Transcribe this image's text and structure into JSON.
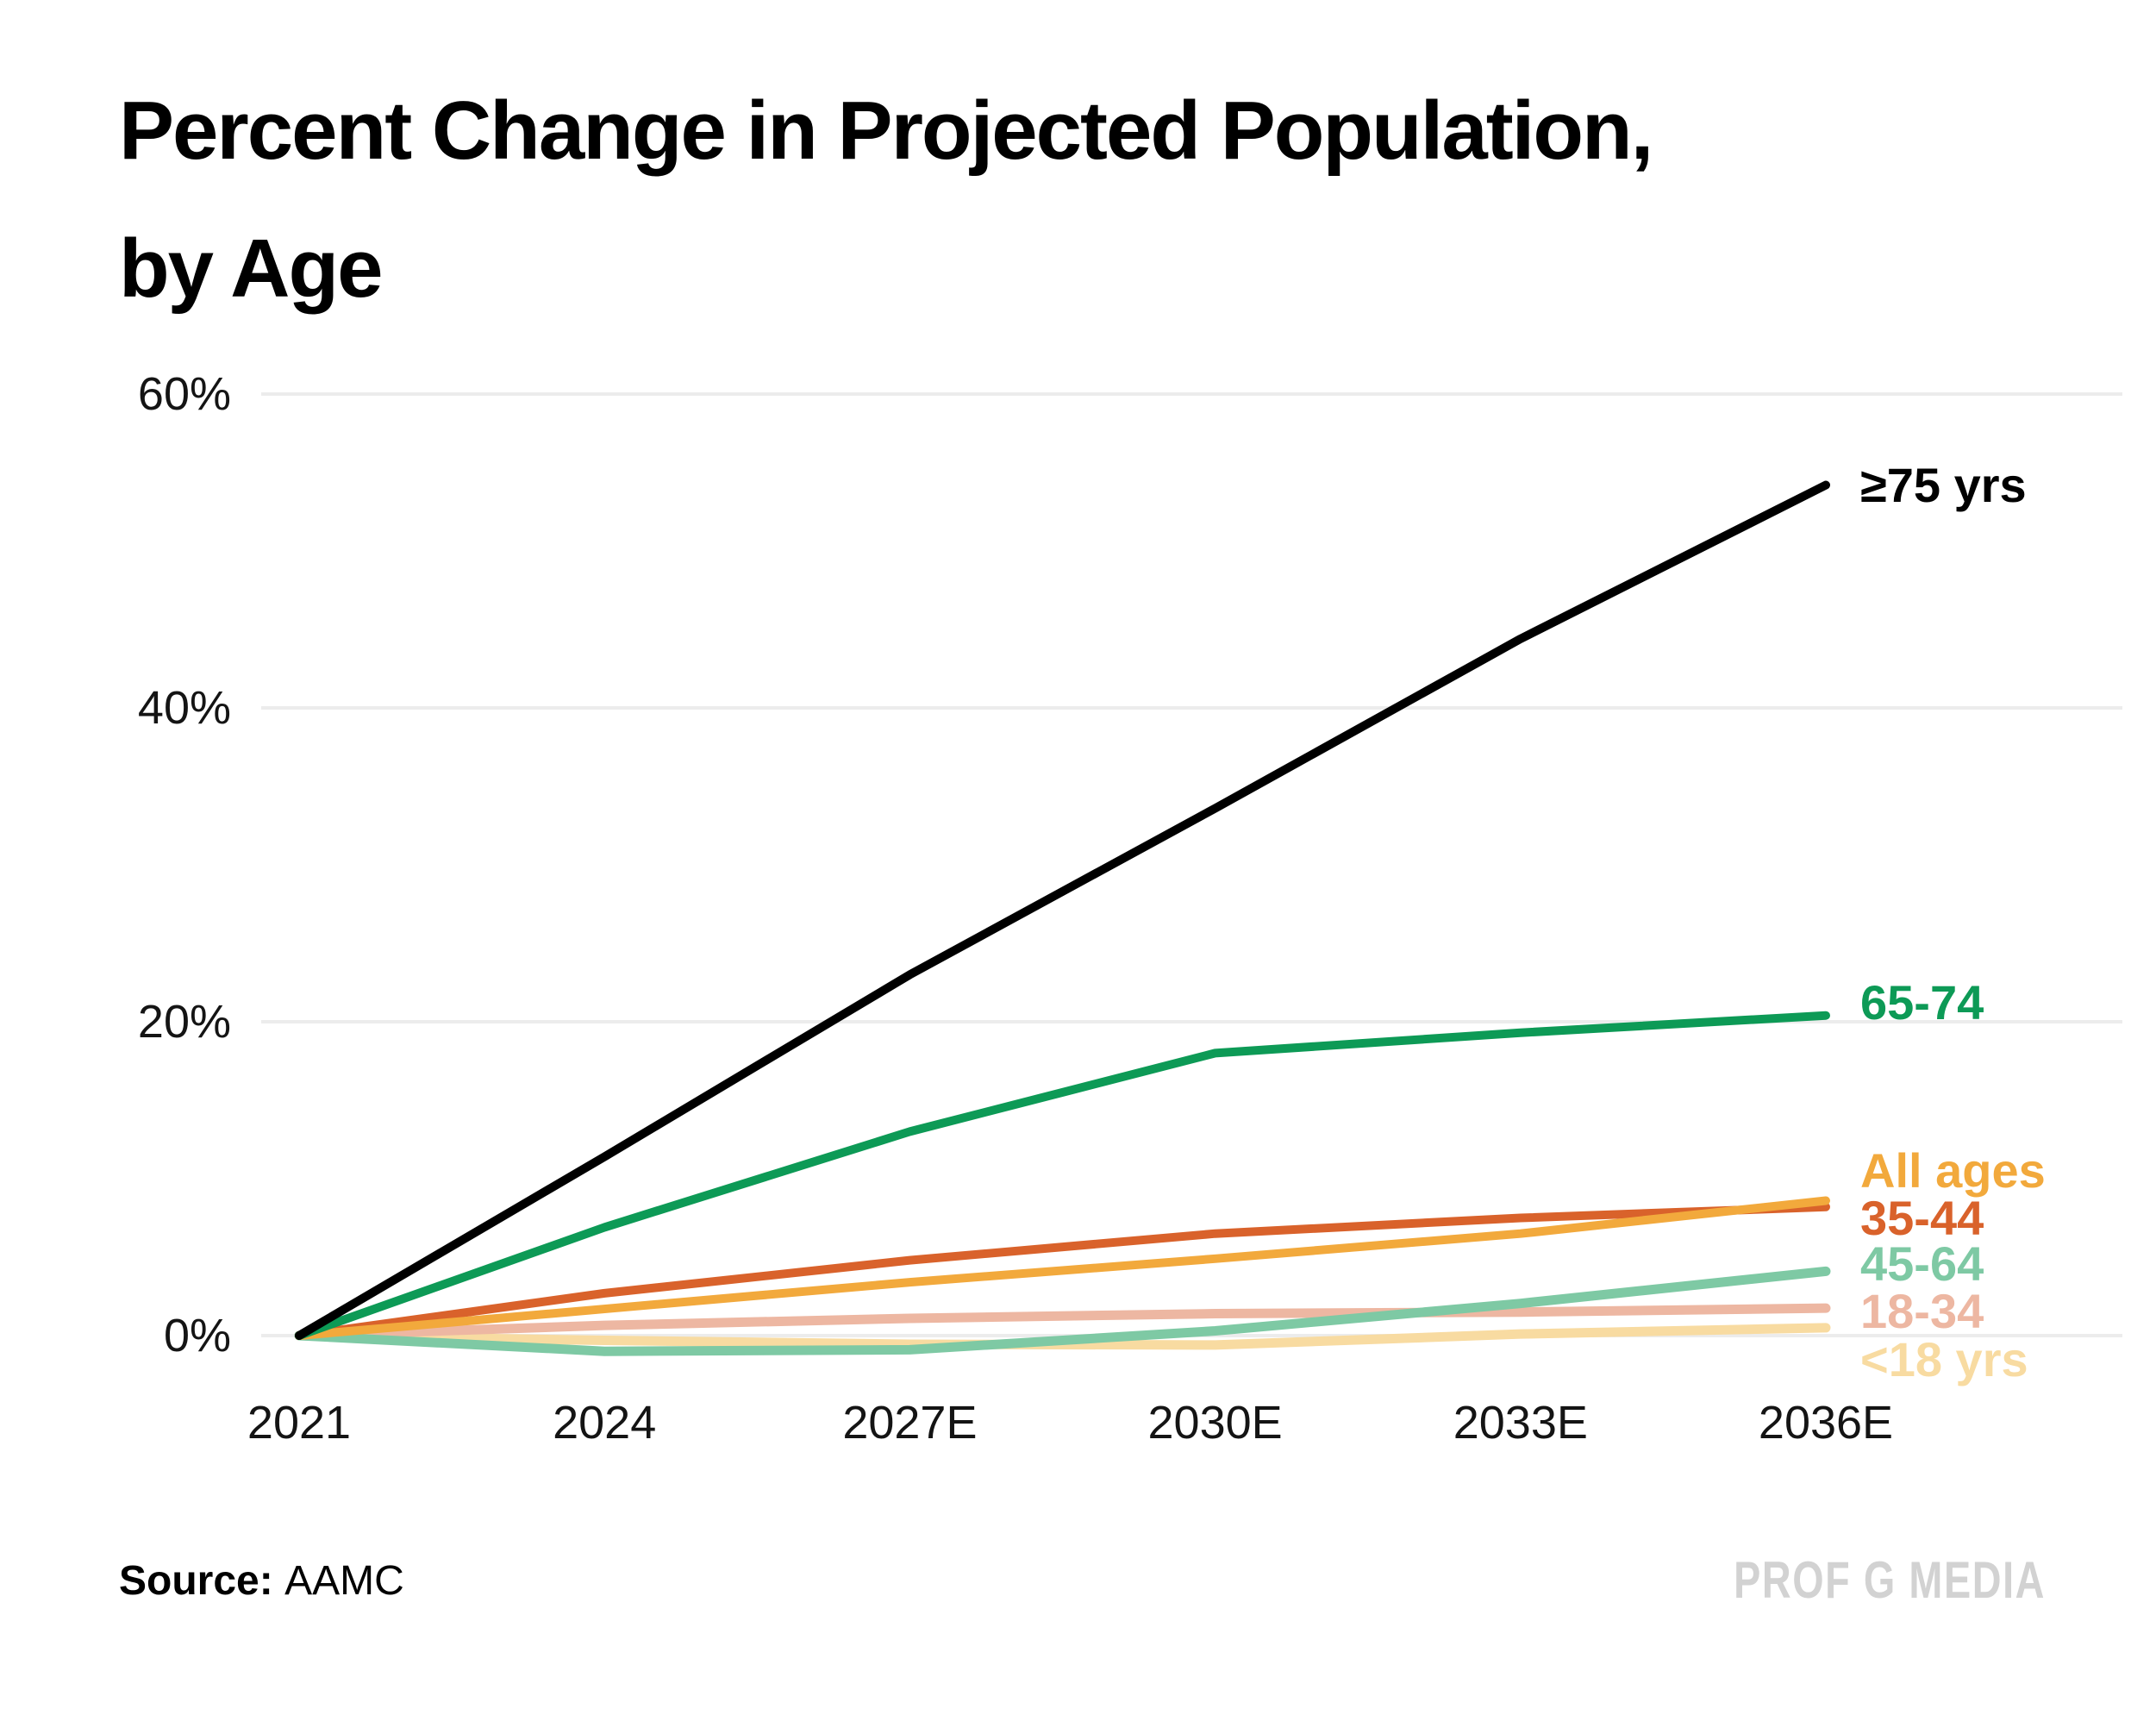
{
  "title": {
    "line1": "Percent Change in Projected Population,",
    "line2": "by Age"
  },
  "source": {
    "label": "Source:",
    "value": "AAMC"
  },
  "watermark": "PROF G MEDIA",
  "colors": {
    "background": "#ffffff",
    "gridline": "#ececec",
    "tick_text": "#141414",
    "watermark_gray": "#d2d2d2"
  },
  "chart_data": {
    "type": "line",
    "x": [
      2021,
      2024,
      2027,
      2030,
      2033,
      2036
    ],
    "x_tick_labels": [
      "2021",
      "2024",
      "2027E",
      "2030E",
      "2033E",
      "2036E"
    ],
    "y_ticks": [
      0,
      20,
      40,
      60
    ],
    "y_tick_labels": [
      "0%",
      "20%",
      "40%",
      "60%"
    ],
    "ylim": [
      -3,
      62
    ],
    "grid": "horizontal-only",
    "legend_position": "labels-at-line-ends-right",
    "series": [
      {
        "name": "<18 yrs",
        "color": "#f8dba1",
        "stroke": 11,
        "label_dy": 37,
        "values": [
          0,
          -0.3,
          -0.55,
          -0.6,
          0.1,
          0.5
        ]
      },
      {
        "name": "18-34",
        "color": "#edb7a2",
        "stroke": 11,
        "label_dy": 4,
        "values": [
          0,
          0.65,
          1.1,
          1.4,
          1.5,
          1.75
        ]
      },
      {
        "name": "45-64",
        "color": "#7ec9a4",
        "stroke": 11,
        "label_dy": -8,
        "values": [
          0,
          -1.0,
          -0.9,
          0.3,
          2.05,
          4.1
        ]
      },
      {
        "name": "35-44",
        "color": "#d9622b",
        "stroke": 10,
        "label_dy": 13,
        "values": [
          0,
          2.7,
          4.8,
          6.5,
          7.5,
          8.2
        ]
      },
      {
        "name": "All ages",
        "color": "#f2a93c",
        "stroke": 10,
        "label_dy": -34,
        "values": [
          0,
          1.7,
          3.4,
          4.9,
          6.5,
          8.6
        ]
      },
      {
        "name": "65-74",
        "color": "#0d9a56",
        "stroke": 10,
        "label_dy": -15,
        "values": [
          0,
          6.9,
          13.0,
          18.0,
          19.3,
          20.4
        ]
      },
      {
        "name": "≥75 yrs",
        "color": "#000000",
        "stroke": 10,
        "label_dy": 0,
        "values": [
          0,
          11.4,
          23.0,
          33.6,
          44.4,
          54.2
        ]
      }
    ]
  }
}
